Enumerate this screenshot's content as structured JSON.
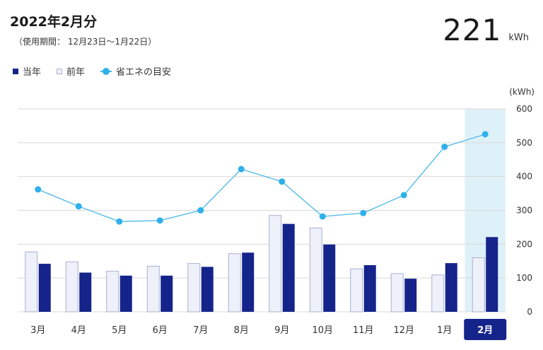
{
  "header": {
    "title": "2022年2月分",
    "period": "（使用期間： 12月23日〜1月22日）",
    "total_value": "221",
    "total_unit": "kWh"
  },
  "legend": {
    "current": "当年",
    "previous": "前年",
    "target": "省エネの目安"
  },
  "colors": {
    "current": "#15248a",
    "previous_fill": "#eef0fa",
    "previous_stroke": "#a9b0cf",
    "target": "#2fb0ea",
    "highlight": "#dff1f8",
    "grid": "#d9d9d9"
  },
  "chart_data": {
    "type": "bar",
    "unit_label": "(kWh)",
    "ylim": [
      0,
      600
    ],
    "yticks": [
      0,
      100,
      200,
      300,
      400,
      500,
      600
    ],
    "categories": [
      "3月",
      "4月",
      "5月",
      "6月",
      "7月",
      "8月",
      "9月",
      "10月",
      "11月",
      "12月",
      "1月",
      "2月"
    ],
    "selected_index": 11,
    "series": [
      {
        "name": "前年",
        "type": "bar",
        "values": [
          177,
          148,
          120,
          135,
          143,
          172,
          285,
          248,
          127,
          113,
          109,
          160
        ]
      },
      {
        "name": "当年",
        "type": "bar",
        "values": [
          142,
          116,
          107,
          107,
          133,
          175,
          260,
          199,
          138,
          98,
          144,
          221
        ]
      },
      {
        "name": "省エネの目安",
        "type": "line",
        "values": [
          362,
          312,
          267,
          270,
          300,
          422,
          385,
          282,
          292,
          345,
          488,
          525
        ]
      }
    ]
  }
}
